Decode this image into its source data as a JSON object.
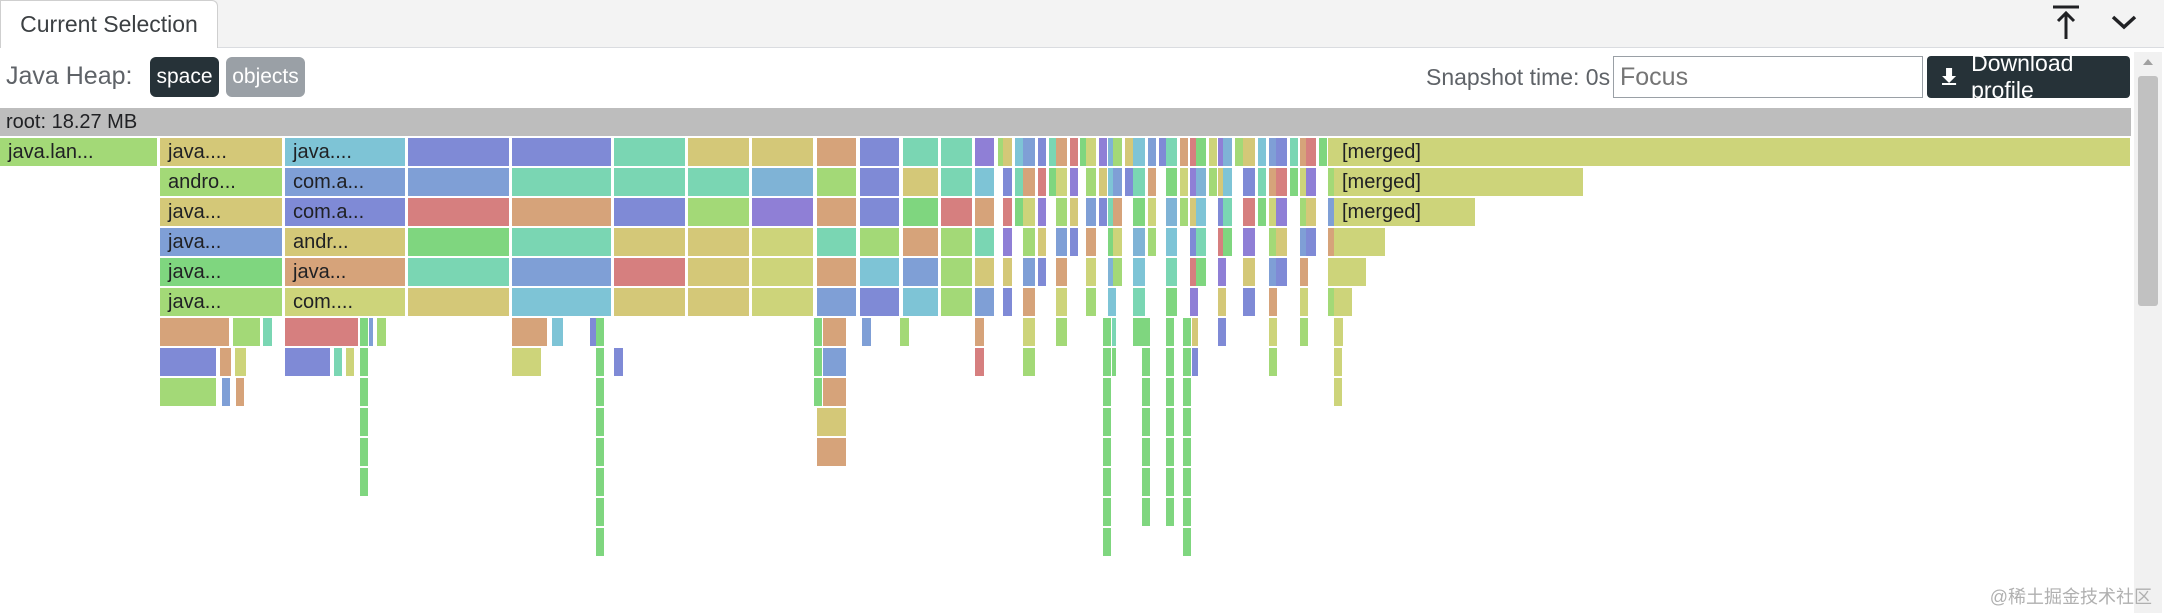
{
  "tabbar": {
    "tab_label": "Current Selection",
    "maximize_icon": "pin-top-icon",
    "collapse_icon": "chevron-down-icon"
  },
  "controls": {
    "heap_label": "Java Heap:",
    "chips": [
      {
        "label": "space",
        "active": true
      },
      {
        "label": "objects",
        "active": false
      }
    ],
    "snapshot_time": "Snapshot time: 0s",
    "focus_placeholder": "Focus",
    "download_label": "Download profile",
    "download_icon": "download-icon"
  },
  "flamegraph": {
    "root_label": "root: 18.27 MB",
    "labels": {
      "c0r0": "java.lan...",
      "c1r0": "java....",
      "c1r1": "andro...",
      "c1r2": "java...",
      "c1r3": "java...",
      "c1r4": "java...",
      "c1r5": "java...",
      "c2r0": "java....",
      "c2r1": "com.a...",
      "c2r2": "com.a...",
      "c2r3": "andr...",
      "c2r4": "java...",
      "c2r5": "com....",
      "m0": "[merged]",
      "m1": "[merged]",
      "m2": "[merged]"
    }
  },
  "watermark": "@稀土掘金技术社区",
  "colors": {
    "chip_active": "#263238",
    "chip_inactive": "#9aa0a6",
    "root_bar": "#bdbdbd",
    "palette": [
      "#a3d977",
      "#d4c878",
      "#7ec4d6",
      "#7f9fd6",
      "#7f8ad6",
      "#7ad6b3",
      "#d6a37a",
      "#d67f7f",
      "#7fd67f",
      "#cdd47a",
      "#8f7fd6",
      "#7fb3d6"
    ]
  }
}
